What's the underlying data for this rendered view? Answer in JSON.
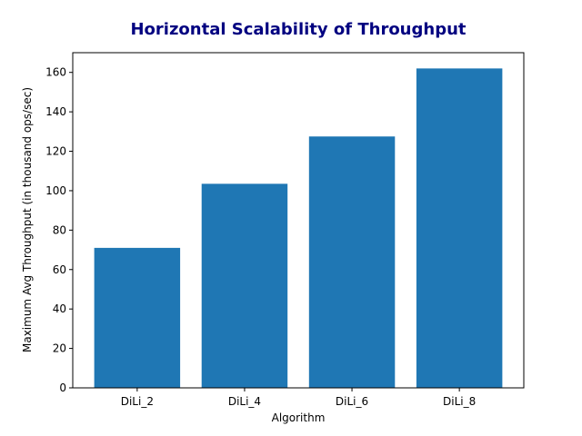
{
  "chart_data": {
    "type": "bar",
    "title": "Horizontal Scalability of Throughput",
    "x_label": "Algorithm",
    "y_label": "Maximum Avg Throughput (in thousand ops/sec)",
    "categories": [
      "DiLi_2",
      "DiLi_4",
      "DiLi_6",
      "DiLi_8"
    ],
    "values": [
      71,
      103.5,
      127.5,
      162
    ],
    "color": "#1f77b4",
    "ylim": [
      0,
      170
    ],
    "yticks": [
      0,
      20,
      40,
      60,
      80,
      100,
      120,
      140,
      160
    ],
    "grid": false
  }
}
